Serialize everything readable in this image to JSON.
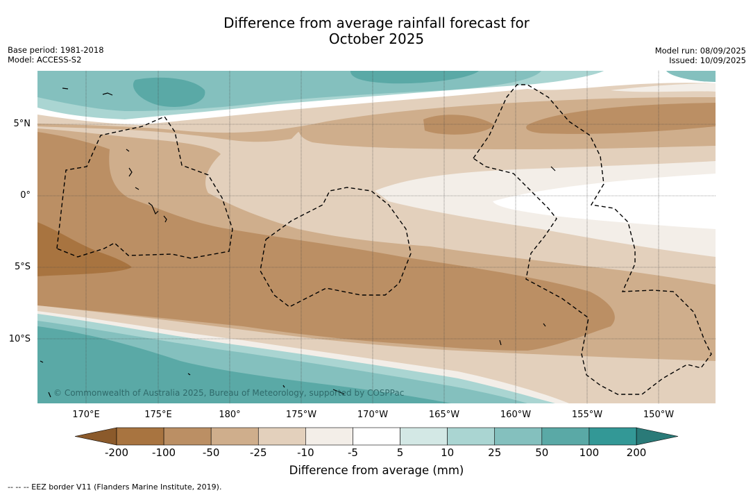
{
  "title_line1": "Difference from average rainfall forecast for",
  "title_line2": "October 2025",
  "meta": {
    "base_period": "Base period: 1981-2018",
    "model": "Model: ACCESS-S2",
    "model_run": "Model run: 08/09/2025",
    "issued": "Issued: 10/09/2025"
  },
  "lat_labels": [
    "5°N",
    "0°",
    "5°S",
    "10°S"
  ],
  "lon_labels": [
    "170°E",
    "175°E",
    "180°",
    "175°W",
    "170°W",
    "165°W",
    "160°W",
    "155°W",
    "150°W"
  ],
  "copyright": "© Commonwealth of Australia 2025, Bureau of Meteorology, supported by COSPPac",
  "colorbar": {
    "title": "Difference from average (mm)",
    "ticks": [
      "-200",
      "-100",
      "-50",
      "-25",
      "-10",
      "-5",
      "5",
      "10",
      "25",
      "50",
      "100",
      "200"
    ],
    "colors": [
      "#a87440",
      "#bb8f64",
      "#cfae8c",
      "#e3d0bc",
      "#f3eee8",
      "#ffffff",
      "#d3e8e5",
      "#aad5d2",
      "#84c0be",
      "#5aa9a6",
      "#339896"
    ],
    "under_color": "#8b5a2b",
    "over_color": "#2a7a78"
  },
  "footnote": "--  --  -- EEZ border V11 (Flanders Marine Institute, 2019)."
}
